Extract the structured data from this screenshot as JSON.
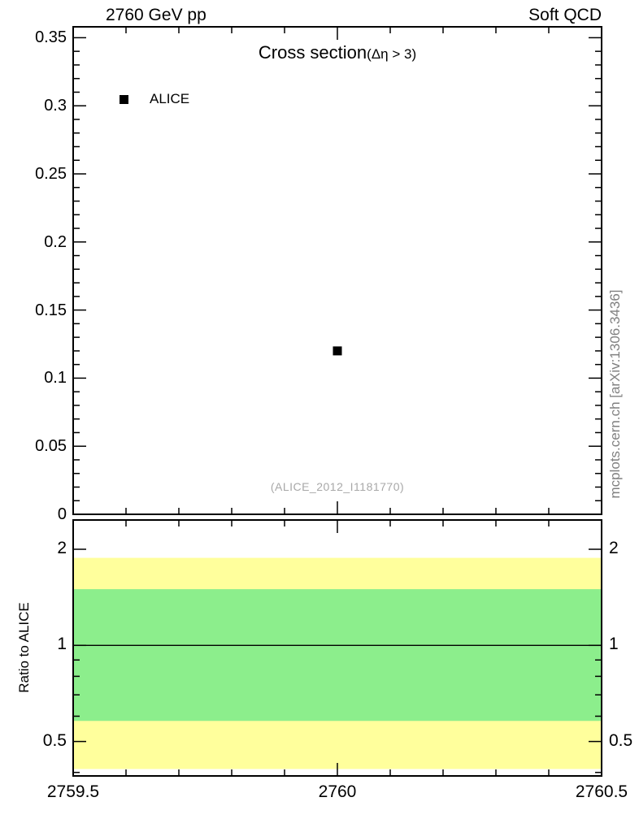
{
  "header": {
    "left": "2760 GeV pp",
    "right": "Soft QCD"
  },
  "main_plot": {
    "title": "Cross section",
    "title_suffix": "(Δη > 3)",
    "legend_label": "ALICE",
    "annotation": "(ALICE_2012_I1181770)"
  },
  "ratio_plot": {
    "ylabel": "Ratio to ALICE"
  },
  "page": {
    "watermark": "mcplots.cern.ch [arXiv:1306.3436]"
  },
  "colors": {
    "outer_band": "#ffff9c",
    "inner_band": "#8cee8c",
    "marker": "#000000",
    "annotation_gray": "#a8a8a8"
  },
  "chart_data": [
    {
      "type": "scatter",
      "panel": "main",
      "title": "Cross section (Δη > 3)",
      "series": [
        {
          "name": "ALICE",
          "marker": "filled-square",
          "color": "#000000",
          "x": [
            2760
          ],
          "y": [
            0.12
          ]
        }
      ],
      "xlim": [
        2759.5,
        2760.5
      ],
      "ylim": [
        0,
        0.358
      ],
      "xticks": [
        2759.5,
        2760,
        2760.5
      ],
      "yticks": [
        0,
        0.05,
        0.1,
        0.15,
        0.2,
        0.25,
        0.3,
        0.35
      ],
      "x_minor_step": 0.1,
      "y_minor_step": 0.01,
      "grid": false,
      "legend_position": "top-left",
      "annotation": "(ALICE_2012_I1181770)"
    },
    {
      "type": "area",
      "panel": "ratio",
      "ylabel": "Ratio to ALICE",
      "yscale": "log",
      "xlim": [
        2759.5,
        2760.5
      ],
      "ylim": [
        0.39,
        2.47
      ],
      "xticks": [
        2759.5,
        2760,
        2760.5
      ],
      "yticks": [
        0.5,
        1,
        2
      ],
      "y_minor_ticks": [
        0.4,
        0.6,
        0.7,
        0.8,
        0.9
      ],
      "bands": [
        {
          "name": "outer-uncertainty",
          "color": "#ffff9c",
          "y_min": 0.41,
          "y_max": 1.88
        },
        {
          "name": "inner-uncertainty",
          "color": "#8cee8c",
          "y_min": 0.58,
          "y_max": 1.5
        }
      ],
      "reference_line_y": 1
    }
  ]
}
